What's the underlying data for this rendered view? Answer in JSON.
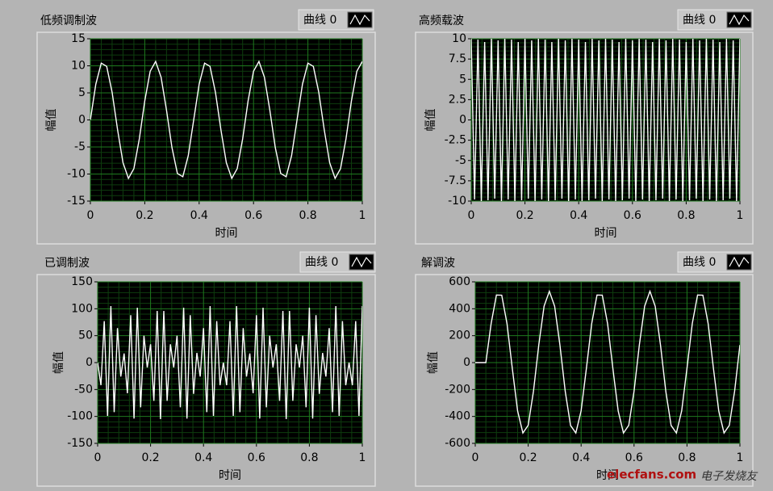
{
  "chart_data": [
    {
      "type": "line",
      "title": "低频调制波",
      "xlabel": "时间",
      "ylabel": "幅值",
      "grid": true,
      "xlim": [
        0,
        1
      ],
      "xticks": [
        0,
        0.2,
        0.4,
        0.6,
        0.8,
        1
      ],
      "ylim": [
        -15,
        15
      ],
      "yticks": [
        -15,
        -10,
        -5,
        0,
        5,
        10,
        15
      ],
      "x": [
        0,
        0.02,
        0.04,
        0.06,
        0.08,
        0.1,
        0.12,
        0.14,
        0.16,
        0.18,
        0.2,
        0.22,
        0.24,
        0.26,
        0.28,
        0.3,
        0.32,
        0.34,
        0.36,
        0.38,
        0.4,
        0.42,
        0.44,
        0.46,
        0.48,
        0.5,
        0.52,
        0.54,
        0.56,
        0.58,
        0.6,
        0.62,
        0.64,
        0.66,
        0.68,
        0.7,
        0.72,
        0.74,
        0.76,
        0.78,
        0.8,
        0.82,
        0.84,
        0.86,
        0.88,
        0.9,
        0.92,
        0.94,
        0.96,
        0.98,
        1
      ],
      "series": [
        {
          "name": "曲线 0",
          "color": "#ffffff",
          "values": [
            0,
            6.6,
            10.5,
            9.9,
            5.1,
            -1.8,
            -7.9,
            -10.8,
            -9,
            -3.5,
            3.5,
            9,
            10.8,
            7.9,
            1.8,
            -5.1,
            -9.9,
            -10.5,
            -6.6,
            0,
            6.6,
            10.5,
            9.9,
            5.1,
            -1.8,
            -7.9,
            -10.8,
            -9,
            -3.5,
            3.5,
            9,
            10.8,
            7.9,
            1.8,
            -5.1,
            -9.9,
            -10.5,
            -6.6,
            0,
            6.6,
            10.5,
            9.9,
            5.1,
            -1.8,
            -7.9,
            -10.8,
            -9,
            -3.5,
            3.5,
            9,
            10.8
          ]
        }
      ]
    },
    {
      "type": "line",
      "title": "高频载波",
      "xlabel": "时间",
      "ylabel": "幅值",
      "grid": true,
      "xlim": [
        0,
        1
      ],
      "xticks": [
        0,
        0.2,
        0.4,
        0.6,
        0.8,
        1
      ],
      "ylim": [
        -10,
        10
      ],
      "yticks": [
        -10,
        -7.5,
        -5,
        -2.5,
        0,
        2.5,
        5,
        7.5,
        10
      ],
      "x": [
        0,
        0.0125,
        0.025,
        0.0375,
        0.05,
        0.0625,
        0.075,
        0.0875,
        0.1,
        0.1125,
        0.125,
        0.1375,
        0.15,
        0.1625,
        0.175,
        0.1875,
        0.2,
        0.2125,
        0.225,
        0.2375,
        0.25,
        0.2625,
        0.275,
        0.2875,
        0.3,
        0.3125,
        0.325,
        0.3375,
        0.35,
        0.3625,
        0.375,
        0.3875,
        0.4,
        0.4125,
        0.425,
        0.4375,
        0.45,
        0.4625,
        0.475,
        0.4875,
        0.5,
        0.5125,
        0.525,
        0.5375,
        0.55,
        0.5625,
        0.575,
        0.5875,
        0.6,
        0.6125,
        0.625,
        0.6375,
        0.65,
        0.6625,
        0.675,
        0.6875,
        0.7,
        0.7125,
        0.725,
        0.7375,
        0.75,
        0.7625,
        0.775,
        0.7875,
        0.8,
        0.8125,
        0.825,
        0.8375,
        0.85,
        0.8625,
        0.875,
        0.8875,
        0.9,
        0.9125,
        0.925,
        0.9375,
        0.95,
        0.9625,
        0.975,
        0.9875,
        1
      ],
      "series": [
        {
          "name": "曲线 0",
          "color": "#ffffff",
          "values": [
            10,
            -9.8,
            9.9,
            -10,
            9.6,
            -9.9,
            10,
            -9.7,
            9.8,
            -10,
            10,
            -9.8,
            9.9,
            -10,
            9.6,
            -9.9,
            10,
            -9.7,
            9.8,
            -10,
            10,
            -9.8,
            9.9,
            -10,
            9.6,
            -9.9,
            10,
            -9.7,
            9.8,
            -10,
            10,
            -9.8,
            9.9,
            -10,
            9.6,
            -9.9,
            10,
            -9.7,
            9.8,
            -10,
            10,
            -9.8,
            9.9,
            -10,
            9.6,
            -9.9,
            10,
            -9.7,
            9.8,
            -10,
            10,
            -9.8,
            9.9,
            -10,
            9.6,
            -9.9,
            10,
            -9.7,
            9.8,
            -10,
            10,
            -9.8,
            9.9,
            -10,
            9.6,
            -9.9,
            10,
            -9.7,
            9.8,
            -10,
            10,
            -9.8,
            9.9,
            -10,
            9.6,
            -9.9,
            10,
            -9.7,
            9.8,
            -10,
            10
          ]
        }
      ]
    },
    {
      "type": "line",
      "title": "已调制波",
      "xlabel": "时间",
      "ylabel": "幅值",
      "grid": true,
      "xlim": [
        0,
        1
      ],
      "xticks": [
        0,
        0.2,
        0.4,
        0.6,
        0.8,
        1
      ],
      "ylim": [
        -150,
        150
      ],
      "yticks": [
        -150,
        -100,
        -50,
        0,
        50,
        100,
        150
      ],
      "x": [
        0,
        0.0125,
        0.025,
        0.0375,
        0.05,
        0.0625,
        0.075,
        0.0875,
        0.1,
        0.1125,
        0.125,
        0.1375,
        0.15,
        0.1625,
        0.175,
        0.1875,
        0.2,
        0.2125,
        0.225,
        0.2375,
        0.25,
        0.2625,
        0.275,
        0.2875,
        0.3,
        0.3125,
        0.325,
        0.3375,
        0.35,
        0.3625,
        0.375,
        0.3875,
        0.4,
        0.4125,
        0.425,
        0.4375,
        0.45,
        0.4625,
        0.475,
        0.4875,
        0.5,
        0.5125,
        0.525,
        0.5375,
        0.55,
        0.5625,
        0.575,
        0.5875,
        0.6,
        0.6125,
        0.625,
        0.6375,
        0.65,
        0.6625,
        0.675,
        0.6875,
        0.7,
        0.7125,
        0.725,
        0.7375,
        0.75,
        0.7625,
        0.775,
        0.7875,
        0.8,
        0.8125,
        0.825,
        0.8375,
        0.85,
        0.8625,
        0.875,
        0.8875,
        0.9,
        0.9125,
        0.925,
        0.9375,
        0.95,
        0.9625,
        0.975,
        0.9875,
        1
      ],
      "series": [
        {
          "name": "曲线 0",
          "color": "#ffffff",
          "values": [
            0,
            -42,
            77,
            -99,
            105,
            -92,
            64,
            -26,
            17,
            -57,
            88,
            -104,
            102,
            -83,
            50,
            -9,
            34,
            -71,
            96,
            -105,
            96,
            -71,
            34,
            -9,
            50,
            -83,
            102,
            -104,
            88,
            -58,
            18,
            -26,
            64,
            -92,
            105,
            -99,
            77,
            -42,
            0,
            -42,
            77,
            -99,
            105,
            -92,
            64,
            -26,
            17,
            -57,
            88,
            -104,
            102,
            -83,
            50,
            -9,
            34,
            -71,
            96,
            -105,
            96,
            -71,
            34,
            -9,
            50,
            -83,
            102,
            -104,
            88,
            -58,
            18,
            -26,
            64,
            -92,
            105,
            -99,
            77,
            -42,
            0,
            -42,
            77,
            -99,
            105
          ]
        }
      ]
    },
    {
      "type": "line",
      "title": "解调波",
      "xlabel": "时间",
      "ylabel": "幅值",
      "grid": true,
      "xlim": [
        0,
        1
      ],
      "xticks": [
        0,
        0.2,
        0.4,
        0.6,
        0.8,
        1
      ],
      "ylim": [
        -600,
        600
      ],
      "yticks": [
        -600,
        -400,
        -200,
        0,
        200,
        400,
        600
      ],
      "x": [
        0,
        0.02,
        0.04,
        0.06,
        0.08,
        0.1,
        0.12,
        0.14,
        0.16,
        0.18,
        0.2,
        0.22,
        0.24,
        0.26,
        0.28,
        0.3,
        0.32,
        0.34,
        0.36,
        0.38,
        0.4,
        0.42,
        0.44,
        0.46,
        0.48,
        0.5,
        0.52,
        0.54,
        0.56,
        0.58,
        0.6,
        0.62,
        0.64,
        0.66,
        0.68,
        0.7,
        0.72,
        0.74,
        0.76,
        0.78,
        0.8,
        0.82,
        0.84,
        0.86,
        0.88,
        0.9,
        0.92,
        0.94,
        0.96,
        0.98,
        1
      ],
      "series": [
        {
          "name": "曲线 0",
          "color": "#ffffff",
          "values": [
            0,
            0,
            0,
            290,
            502,
            501,
            289,
            -44,
            -359,
            -523,
            -466,
            -212,
            131,
            419,
            530,
            418,
            129,
            -214,
            -467,
            -523,
            -358,
            -42,
            290,
            502,
            501,
            289,
            -44,
            -359,
            -523,
            -466,
            -212,
            131,
            419,
            530,
            418,
            129,
            -214,
            -467,
            -523,
            -358,
            -42,
            290,
            502,
            501,
            289,
            -44,
            -359,
            -523,
            -466,
            -212,
            131
          ]
        }
      ]
    }
  ],
  "watermark": {
    "site": "elecfans.com",
    "text": "电子发烧友"
  }
}
